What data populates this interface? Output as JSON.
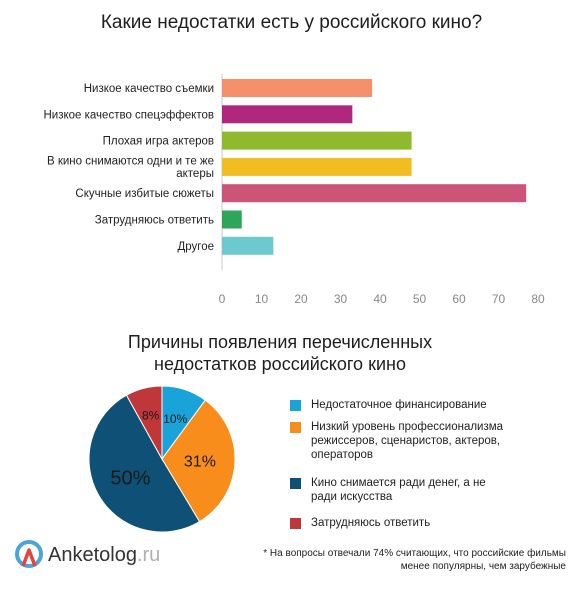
{
  "chart_data": [
    {
      "type": "bar",
      "orientation": "horizontal",
      "title": "Какие недостатки есть у российского кино?",
      "categories": [
        "Низкое качество съемки",
        "Низкое качество спецэффектов",
        "Плохая игра актеров",
        "В кино снимаются одни и те же актеры",
        "Скучные  избитые сюжеты",
        "Затрудняюсь ответить",
        "Другое"
      ],
      "category_lines": [
        [
          "Низкое качество съемки"
        ],
        [
          "Низкое качество спецэффектов"
        ],
        [
          "Плохая игра актеров"
        ],
        [
          "В кино снимаются одни и те же",
          "актеры"
        ],
        [
          "Скучные  избитые сюжеты"
        ],
        [
          "Затрудняюсь ответить"
        ],
        [
          "Другое"
        ]
      ],
      "values": [
        38,
        33,
        48,
        48,
        77,
        5,
        13
      ],
      "colors": [
        "#f4916b",
        "#b0277e",
        "#8fba2e",
        "#f2bd22",
        "#cc5479",
        "#2fa55c",
        "#6bc9cf"
      ],
      "xlim": [
        0,
        80
      ],
      "xticks": [
        0,
        10,
        20,
        30,
        40,
        50,
        60,
        70,
        80
      ],
      "grid": false
    },
    {
      "type": "pie",
      "title": "Причины появления перечисленных недостатков российского кино",
      "labels": [
        "Недостаточное финансирование",
        "Низкий уровень профессионализма режиссеров, сценаристов, актеров, операторов",
        "Кино снимается ради денег, а не ради искусства",
        "Затрудняюсь ответить"
      ],
      "values": [
        10,
        31,
        50,
        8
      ],
      "value_labels": [
        "10%",
        "31%",
        "50%",
        "8%"
      ],
      "colors": [
        "#1aa3d9",
        "#f98d1c",
        "#0e5076",
        "#c0373a"
      ],
      "legend_position": "right"
    }
  ],
  "legend": {
    "items": [
      {
        "lines": [
          "Недостаточное финансирование"
        ],
        "color": "#1aa3d9"
      },
      {
        "lines": [
          "Низкий уровень профессионализма",
          "режиссеров, сценаристов, актеров,",
          "операторов"
        ],
        "color": "#f98d1c"
      },
      {
        "lines": [
          "Кино снимается ради денег, а не",
          "ради искусства"
        ],
        "color": "#0e5076"
      },
      {
        "lines": [
          "Затрудняюсь ответить"
        ],
        "color": "#c0373a"
      }
    ]
  },
  "logo": {
    "name": "Anketolog",
    "tld": ".ru",
    "icon": "anketolog-logo-icon"
  },
  "footnote": {
    "line1": "* На вопросы отвечали 74%  считающих, что российские фильмы",
    "line2": "менее популярны, чем зарубежные"
  }
}
